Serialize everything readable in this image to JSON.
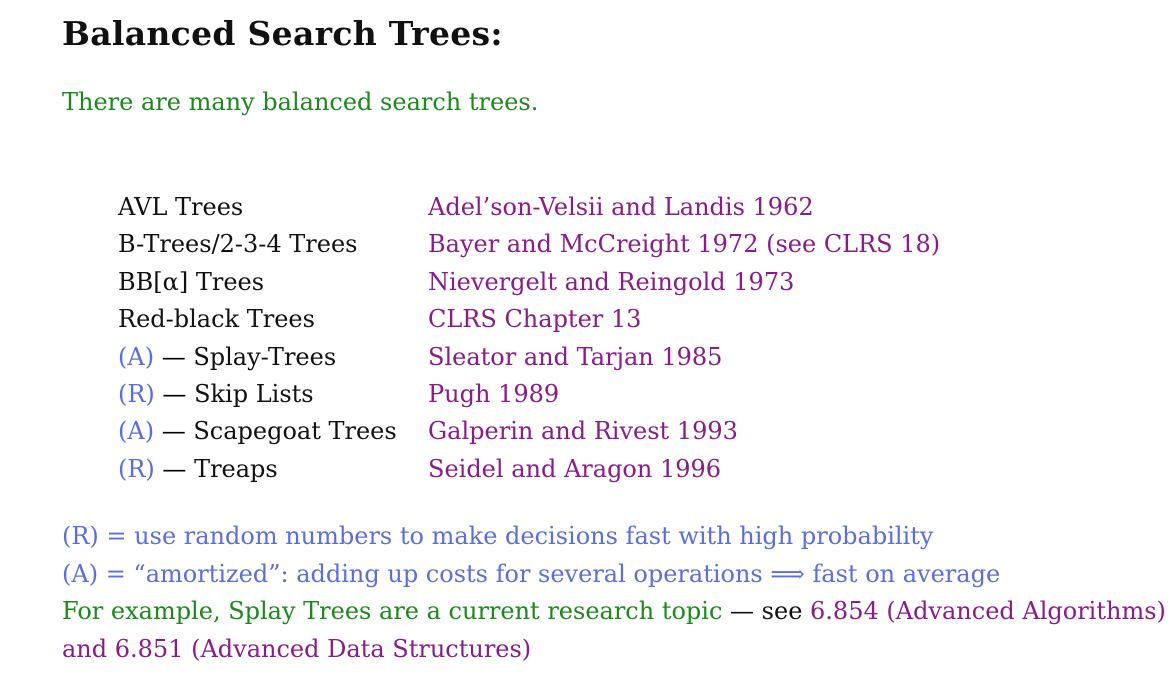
{
  "colors": {
    "text": "#111111",
    "green": "#1a8a1a",
    "purple": "#8b1a8b",
    "blue": "#5a6ee0"
  },
  "title": "Balanced Search Trees:",
  "intro": "There are many balanced search trees.",
  "rows": [
    {
      "tag": "",
      "dash": "",
      "name": "AVL Trees",
      "ref": "Adel’son-Velsii and Landis 1962"
    },
    {
      "tag": "",
      "dash": "",
      "name": "B-Trees/2-3-4 Trees",
      "ref": "Bayer and McCreight 1972 (see CLRS 18)"
    },
    {
      "tag": "",
      "dash": "",
      "name": "BB[α] Trees",
      "ref": "Nievergelt and Reingold 1973"
    },
    {
      "tag": "",
      "dash": "",
      "name": "Red-black Trees",
      "ref": "CLRS Chapter 13"
    },
    {
      "tag": "(A)",
      "dash": " — ",
      "name": "Splay-Trees",
      "ref": "Sleator and Tarjan 1985"
    },
    {
      "tag": "(R)",
      "dash": " — ",
      "name": "Skip Lists",
      "ref": "Pugh 1989"
    },
    {
      "tag": "(A)",
      "dash": " — ",
      "name": "Scapegoat Trees",
      "ref": "Galperin and Rivest 1993"
    },
    {
      "tag": "(R)",
      "dash": " — ",
      "name": "Treaps",
      "ref": "Seidel and Aragon 1996"
    }
  ],
  "notes": {
    "random": "(R) = use random numbers to make decisions fast with high probability",
    "amortized": "(A) = “amortized”: adding up costs for several operations  ⟹  fast on average",
    "example_prefix": "For example, Splay Trees are a current research topic",
    "example_dash": " — see ",
    "example_course1": "6.854 (Advanced Algorithms)",
    "example_and": "and ",
    "example_course2": "6.851 (Advanced Data Structures)"
  }
}
